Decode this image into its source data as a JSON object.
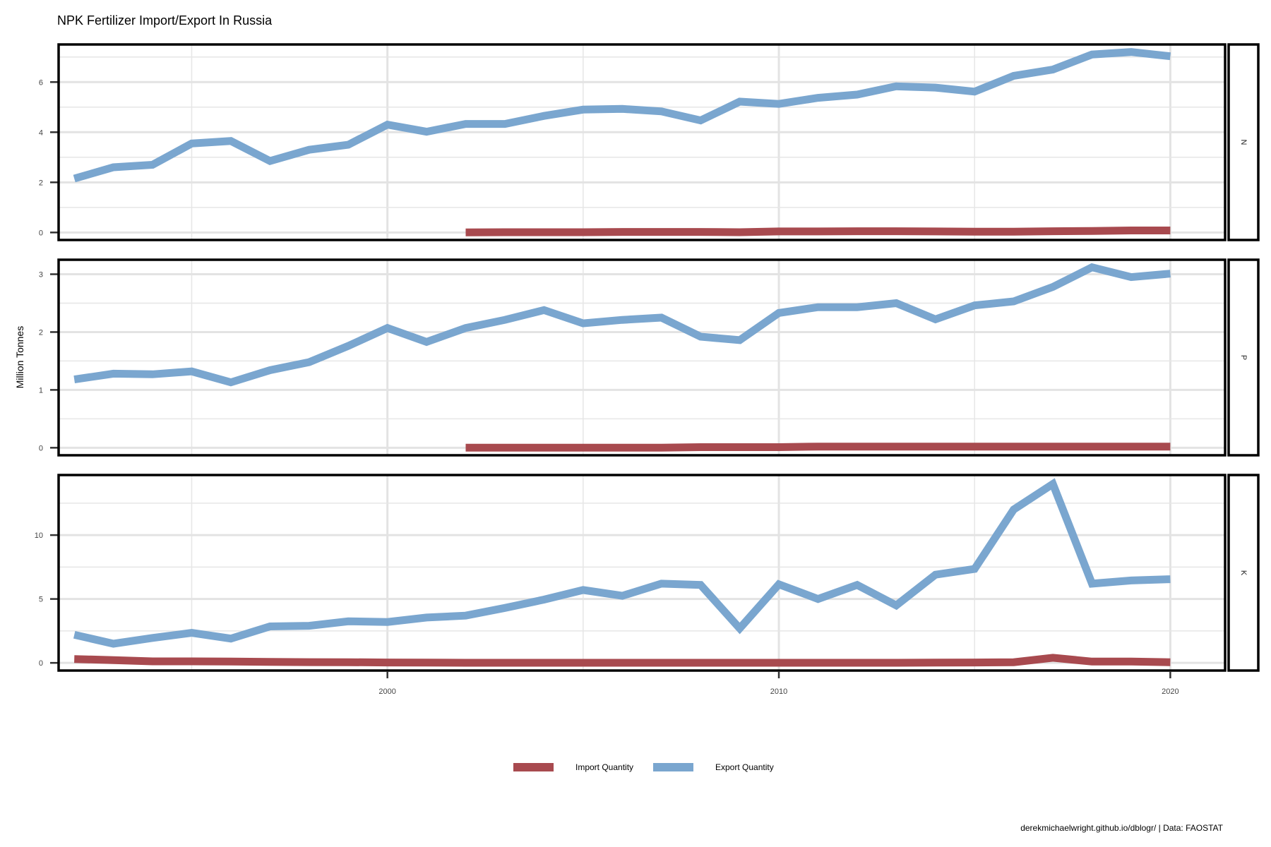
{
  "chart_data": {
    "type": "line",
    "title": "NPK Fertilizer Import/Export In Russia",
    "ylabel": "Million Tonnes",
    "xlabel": "",
    "x_ticks": [
      2000,
      2010,
      2020
    ],
    "xlim": [
      1991.6,
      2021.4
    ],
    "caption": "derekmichaelwright.github.io/dblogr/ | Data: FAOSTAT",
    "colors": {
      "import": "#a84a4f",
      "export": "#7aa6cf"
    },
    "legend": {
      "position": "bottom",
      "entries": [
        {
          "name": "Import Quantity",
          "color": "#a84a4f"
        },
        {
          "name": "Export Quantity",
          "color": "#7aa6cf"
        }
      ]
    },
    "grid": true,
    "panels": [
      {
        "label": "N",
        "ylim": [
          -0.3,
          7.5
        ],
        "y_ticks": [
          0,
          2,
          4,
          6
        ],
        "series": [
          {
            "name": "Export Quantity",
            "x": [
              1992,
              1993,
              1994,
              1995,
              1996,
              1997,
              1998,
              1999,
              2000,
              2001,
              2002,
              2003,
              2004,
              2005,
              2006,
              2007,
              2008,
              2009,
              2010,
              2011,
              2012,
              2013,
              2014,
              2015,
              2016,
              2017,
              2018,
              2019,
              2020
            ],
            "y": [
              2.15,
              2.6,
              2.7,
              3.55,
              3.65,
              2.85,
              3.3,
              3.5,
              4.3,
              4.02,
              4.33,
              4.33,
              4.65,
              4.9,
              4.93,
              4.83,
              4.47,
              5.22,
              5.13,
              5.37,
              5.5,
              5.83,
              5.78,
              5.62,
              6.25,
              6.5,
              7.1,
              7.2,
              7.03
            ]
          },
          {
            "name": "Import Quantity",
            "x": [
              2002,
              2003,
              2004,
              2005,
              2006,
              2007,
              2008,
              2009,
              2010,
              2011,
              2012,
              2013,
              2014,
              2015,
              2016,
              2017,
              2018,
              2019,
              2020
            ],
            "y": [
              0.0,
              0.01,
              0.01,
              0.01,
              0.02,
              0.02,
              0.02,
              0.01,
              0.04,
              0.04,
              0.05,
              0.05,
              0.04,
              0.03,
              0.03,
              0.05,
              0.06,
              0.08,
              0.08
            ]
          }
        ]
      },
      {
        "label": "P",
        "ylim": [
          -0.13,
          3.25
        ],
        "y_ticks": [
          0,
          1,
          2,
          3
        ],
        "series": [
          {
            "name": "Export Quantity",
            "x": [
              1992,
              1993,
              1994,
              1995,
              1996,
              1997,
              1998,
              1999,
              2000,
              2001,
              2002,
              2003,
              2004,
              2005,
              2006,
              2007,
              2008,
              2009,
              2010,
              2011,
              2012,
              2013,
              2014,
              2015,
              2016,
              2017,
              2018,
              2019,
              2020
            ],
            "y": [
              1.18,
              1.28,
              1.27,
              1.32,
              1.13,
              1.34,
              1.48,
              1.76,
              2.07,
              1.83,
              2.07,
              2.21,
              2.38,
              2.15,
              2.21,
              2.25,
              1.92,
              1.86,
              2.33,
              2.43,
              2.43,
              2.5,
              2.22,
              2.46,
              2.53,
              2.78,
              3.12,
              2.95,
              3.01
            ]
          },
          {
            "name": "Import Quantity",
            "x": [
              2002,
              2003,
              2004,
              2005,
              2006,
              2007,
              2008,
              2009,
              2010,
              2011,
              2012,
              2013,
              2014,
              2015,
              2016,
              2017,
              2018,
              2019,
              2020
            ],
            "y": [
              0.0,
              0.0,
              0.0,
              0.0,
              0.0,
              0.0,
              0.01,
              0.01,
              0.01,
              0.02,
              0.02,
              0.02,
              0.02,
              0.02,
              0.02,
              0.02,
              0.02,
              0.02,
              0.02
            ]
          }
        ]
      },
      {
        "label": "K",
        "ylim": [
          -0.6,
          14.7
        ],
        "y_ticks": [
          0,
          5,
          10
        ],
        "series": [
          {
            "name": "Export Quantity",
            "x": [
              1992,
              1993,
              1994,
              1995,
              1996,
              1997,
              1998,
              1999,
              2000,
              2001,
              2002,
              2003,
              2004,
              2005,
              2006,
              2007,
              2008,
              2009,
              2010,
              2011,
              2012,
              2013,
              2014,
              2015,
              2016,
              2017,
              2018,
              2019,
              2020
            ],
            "y": [
              2.2,
              1.5,
              1.95,
              2.35,
              1.9,
              2.85,
              2.9,
              3.25,
              3.2,
              3.55,
              3.7,
              4.3,
              4.95,
              5.7,
              5.25,
              6.2,
              6.1,
              2.7,
              6.15,
              5.0,
              6.1,
              4.5,
              6.9,
              7.35,
              12.0,
              14.0,
              6.2,
              6.45,
              6.55
            ]
          },
          {
            "name": "Import Quantity",
            "x": [
              1992,
              1993,
              1994,
              1995,
              1996,
              1997,
              1998,
              1999,
              2000,
              2001,
              2002,
              2003,
              2004,
              2005,
              2006,
              2007,
              2008,
              2009,
              2010,
              2011,
              2012,
              2013,
              2014,
              2015,
              2016,
              2017,
              2018,
              2019,
              2020
            ],
            "y": [
              0.3,
              0.22,
              0.12,
              0.12,
              0.1,
              0.08,
              0.06,
              0.05,
              0.03,
              0.02,
              0.01,
              0.01,
              0.01,
              0.01,
              0.01,
              0.01,
              0.01,
              0.01,
              0.01,
              0.01,
              0.01,
              0.01,
              0.02,
              0.03,
              0.05,
              0.4,
              0.1,
              0.1,
              0.05
            ]
          }
        ]
      }
    ]
  }
}
